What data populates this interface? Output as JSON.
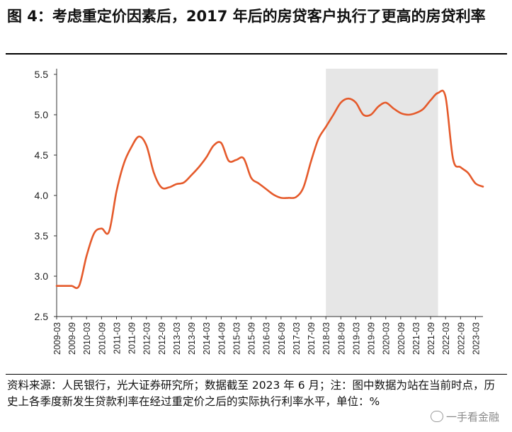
{
  "title": "图 4：考虑重定价因素后，2017 年后的房贷客户执行了更高的房贷利率",
  "source": "资料来源：人民银行，光大证券研究所；数据截至 2023 年 6 月；注：图中数据为站在当前时点，历史上各季度新发生贷款利率在经过重定价之后的实际执行利率水平，单位：%",
  "watermark": "一手看金融",
  "colors": {
    "line": "#e55a2b",
    "shade": "#e6e6e6",
    "axis": "#333333"
  },
  "chart_data": {
    "type": "line",
    "ylim": [
      2.5,
      5.5
    ],
    "yticks": [
      "2.5",
      "3.0",
      "3.5",
      "4.0",
      "4.5",
      "5.0",
      "5.5"
    ],
    "grid": false,
    "shaded_region": {
      "from": "2018-03",
      "to": "2021-12"
    },
    "categories": [
      "2009-03",
      "2009-06",
      "2009-09",
      "2009-12",
      "2010-03",
      "2010-06",
      "2010-09",
      "2010-12",
      "2011-03",
      "2011-06",
      "2011-09",
      "2011-12",
      "2012-03",
      "2012-06",
      "2012-09",
      "2012-12",
      "2013-03",
      "2013-06",
      "2013-09",
      "2013-12",
      "2014-03",
      "2014-06",
      "2014-09",
      "2014-12",
      "2015-03",
      "2015-06",
      "2015-09",
      "2015-12",
      "2016-03",
      "2016-06",
      "2016-09",
      "2016-12",
      "2017-03",
      "2017-06",
      "2017-09",
      "2017-12",
      "2018-03",
      "2018-06",
      "2018-09",
      "2018-12",
      "2019-03",
      "2019-06",
      "2019-09",
      "2019-12",
      "2020-03",
      "2020-06",
      "2020-09",
      "2020-12",
      "2021-03",
      "2021-06",
      "2021-09",
      "2021-12",
      "2022-03",
      "2022-06",
      "2022-09",
      "2022-12",
      "2023-03",
      "2023-06"
    ],
    "tick_labels": [
      "2009-03",
      "2009-09",
      "2010-03",
      "2010-09",
      "2011-03",
      "2011-09",
      "2012-03",
      "2012-09",
      "2013-03",
      "2013-09",
      "2014-03",
      "2014-09",
      "2015-03",
      "2015-09",
      "2016-03",
      "2016-09",
      "2017-03",
      "2017-09",
      "2018-03",
      "2018-09",
      "2019-03",
      "2019-09",
      "2020-03",
      "2020-09",
      "2021-03",
      "2021-09",
      "2022-03",
      "2022-09",
      "2023-03"
    ],
    "series": [
      {
        "values": [
          2.88,
          2.88,
          2.88,
          2.88,
          3.25,
          3.53,
          3.59,
          3.55,
          4.05,
          4.4,
          4.6,
          4.73,
          4.62,
          4.28,
          4.1,
          4.1,
          4.14,
          4.16,
          4.25,
          4.35,
          4.47,
          4.62,
          4.65,
          4.43,
          4.44,
          4.46,
          4.22,
          4.15,
          4.08,
          4.01,
          3.97,
          3.97,
          3.98,
          4.1,
          4.42,
          4.7,
          4.85,
          5.0,
          5.15,
          5.2,
          5.15,
          5.0,
          5.0,
          5.1,
          5.15,
          5.08,
          5.02,
          5.0,
          5.02,
          5.07,
          5.18,
          5.27,
          5.22,
          4.45,
          4.35,
          4.28,
          4.15,
          4.11
        ]
      }
    ]
  }
}
